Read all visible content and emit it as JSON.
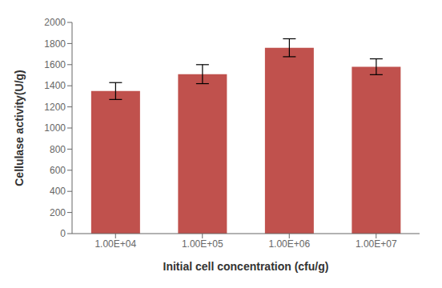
{
  "chart_data": {
    "type": "bar",
    "categories": [
      "1.00E+04",
      "1.00E+05",
      "1.00E+06",
      "1.00E+07"
    ],
    "values": [
      1350,
      1510,
      1760,
      1580
    ],
    "errors": [
      80,
      90,
      85,
      75
    ],
    "color": "#c0514d",
    "xlabel": "Initial cell concentration (cfu/g)",
    "ylabel": "Cellulase activity(U/g)",
    "ylim": [
      0,
      2000
    ],
    "yticks": [
      0,
      200,
      400,
      600,
      800,
      1000,
      1200,
      1400,
      1600,
      1800,
      2000
    ],
    "grid": false
  }
}
